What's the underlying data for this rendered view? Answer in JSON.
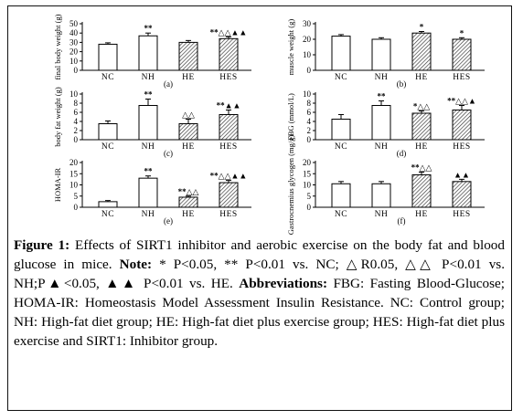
{
  "categories": [
    "NC",
    "NH",
    "HE",
    "HES"
  ],
  "chart_data": [
    {
      "type": "bar",
      "panel": "(a)",
      "ylabel": "final body weight (g)",
      "ylim": [
        0,
        50
      ],
      "yticks": [
        0,
        10,
        20,
        30,
        40,
        50
      ],
      "values": [
        28,
        37,
        30,
        34
      ],
      "errors": [
        1.5,
        3,
        2,
        2
      ],
      "annotations": [
        "",
        "**",
        "",
        "**△△▲▲"
      ]
    },
    {
      "type": "bar",
      "panel": "(b)",
      "ylabel": "muscle weight (g)",
      "ylim": [
        0,
        30
      ],
      "yticks": [
        0,
        10,
        20,
        30
      ],
      "values": [
        22,
        20,
        24,
        20
      ],
      "errors": [
        1,
        1,
        1,
        1
      ],
      "annotations": [
        "",
        "",
        "*",
        "*"
      ]
    },
    {
      "type": "bar",
      "panel": "(c)",
      "ylabel": "body fat weight (g)",
      "ylim": [
        0,
        10
      ],
      "yticks": [
        0,
        2,
        4,
        6,
        8,
        10
      ],
      "values": [
        3.5,
        7.5,
        3.5,
        5.5
      ],
      "errors": [
        0.6,
        1.4,
        1,
        1
      ],
      "annotations": [
        "",
        "**",
        "△△",
        "**▲▲"
      ]
    },
    {
      "type": "bar",
      "panel": "(d)",
      "ylabel": "FBG (mmol/L)",
      "ylim": [
        0,
        10
      ],
      "yticks": [
        0,
        2,
        4,
        6,
        8,
        10
      ],
      "values": [
        4.5,
        7.5,
        5.8,
        6.5
      ],
      "errors": [
        1,
        1,
        0.5,
        1
      ],
      "annotations": [
        "",
        "**",
        "*△△",
        "**△△▲"
      ]
    },
    {
      "type": "bar",
      "panel": "(e)",
      "ylabel": "HOMA-IR",
      "ylim": [
        0,
        20
      ],
      "yticks": [
        0,
        5,
        10,
        15,
        20
      ],
      "values": [
        2.5,
        13,
        4.5,
        11
      ],
      "errors": [
        0.5,
        1,
        0.5,
        1
      ],
      "annotations": [
        "",
        "**",
        "**△△",
        "**△△▲▲"
      ]
    },
    {
      "type": "bar",
      "panel": "(f)",
      "ylabel": "Gastrocnemius glycogen (mg/g)",
      "ylim": [
        0,
        20
      ],
      "yticks": [
        0,
        5,
        10,
        15,
        20
      ],
      "values": [
        10.5,
        10.5,
        14.5,
        11.5
      ],
      "errors": [
        1,
        1,
        1.2,
        1
      ],
      "annotations": [
        "",
        "",
        "**△△",
        "▲▲"
      ]
    }
  ],
  "caption": {
    "label": "Figure 1:",
    "title": " Effects of SIRT1 inhibitor and aerobic exercise on the body fat and blood glucose in mice. ",
    "note_label": "Note:",
    "note_text": " * P<0.05, ** P<0.01 vs. NC; △R0.05, △△ P<0.01 vs. NH;P▲<0.05, ▲▲ P<0.01 vs. HE. ",
    "abbr_label": "Abbreviations:",
    "abbr_text": " FBG: Fasting Blood-Glucose; HOMA-IR: Homeostasis Model Assessment Insulin Resistance. NC: Control group; NH: High-fat diet group; HE: High-fat diet plus exercise group; HES: High-fat diet plus exercise and SIRT1: Inhibitor group."
  }
}
